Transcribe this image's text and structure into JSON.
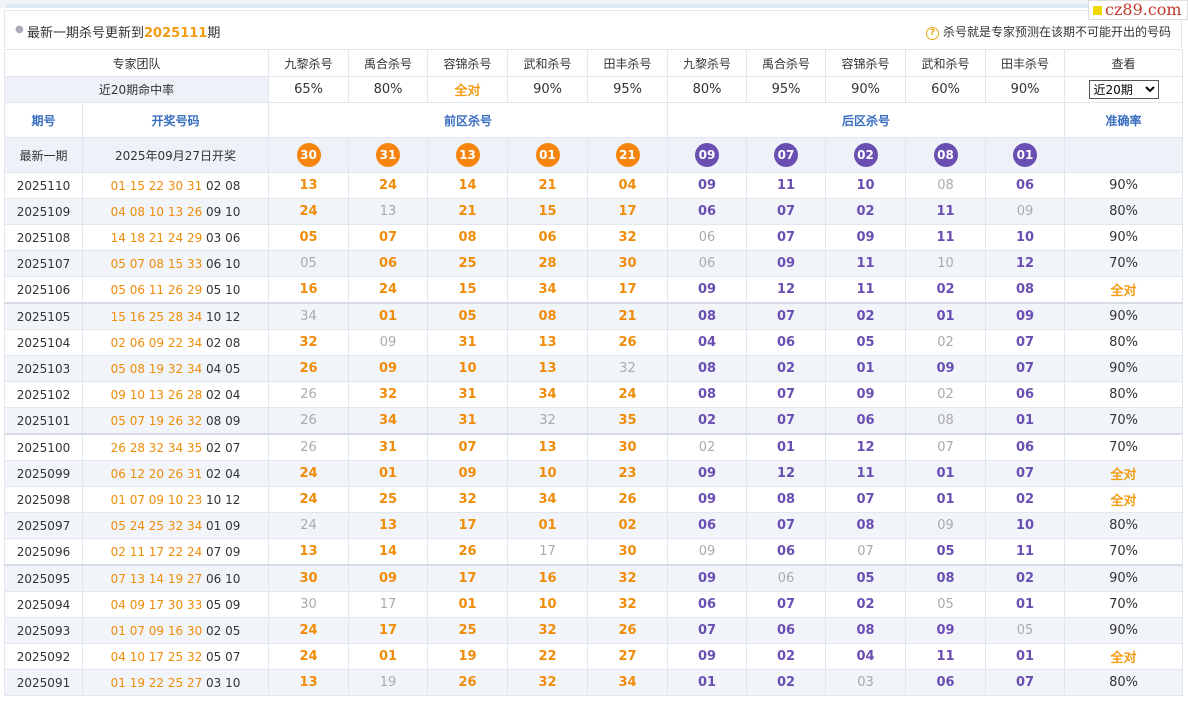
{
  "watermark": "cz89.com",
  "info": {
    "prefix": "最新一期杀号更新到",
    "issue": "2025111",
    "suffix": "期",
    "note": "杀号就是专家预测在该期不可能开出的号码"
  },
  "header": {
    "team_label": "专家团队",
    "experts": [
      "九黎杀号",
      "禹合杀号",
      "容锦杀号",
      "武和杀号",
      "田丰杀号",
      "九黎杀号",
      "禹合杀号",
      "容锦杀号",
      "武和杀号",
      "田丰杀号"
    ],
    "view_label": "查看",
    "hit_label": "近20期命中率",
    "hit_rates": [
      "65%",
      "80%",
      "全对",
      "90%",
      "95%",
      "80%",
      "95%",
      "90%",
      "60%",
      "90%"
    ],
    "select_value": "近20期",
    "col_period": "期号",
    "col_draw": "开奖号码",
    "col_front": "前区杀号",
    "col_back": "后区杀号",
    "col_accuracy": "准确率"
  },
  "latest": {
    "label": "最新一期",
    "date": "2025年09月27日开奖",
    "front": [
      "30",
      "31",
      "13",
      "01",
      "21"
    ],
    "back": [
      "09",
      "07",
      "02",
      "08",
      "01"
    ]
  },
  "rows": [
    {
      "period": "2025110",
      "front_draw": "01 15 22 30 31",
      "back_draw": "02 08",
      "kills": [
        "13",
        "24",
        "14",
        "21",
        "04",
        "09",
        "11",
        "10",
        "08",
        "06"
      ],
      "misses": [
        8
      ],
      "accuracy": "90%"
    },
    {
      "period": "2025109",
      "front_draw": "04 08 10 13 26",
      "back_draw": "09 10",
      "kills": [
        "24",
        "13",
        "21",
        "15",
        "17",
        "06",
        "07",
        "02",
        "11",
        "09"
      ],
      "misses": [
        1,
        9
      ],
      "accuracy": "80%"
    },
    {
      "period": "2025108",
      "front_draw": "14 18 21 24 29",
      "back_draw": "03 06",
      "kills": [
        "05",
        "07",
        "08",
        "06",
        "32",
        "06",
        "07",
        "09",
        "11",
        "10"
      ],
      "misses": [
        5
      ],
      "accuracy": "90%"
    },
    {
      "period": "2025107",
      "front_draw": "05 07 08 15 33",
      "back_draw": "06 10",
      "kills": [
        "05",
        "06",
        "25",
        "28",
        "30",
        "06",
        "09",
        "11",
        "10",
        "12"
      ],
      "misses": [
        0,
        5,
        8
      ],
      "accuracy": "70%"
    },
    {
      "period": "2025106",
      "front_draw": "05 06 11 26 29",
      "back_draw": "05 10",
      "kills": [
        "16",
        "24",
        "15",
        "34",
        "17",
        "09",
        "12",
        "11",
        "02",
        "08"
      ],
      "misses": [],
      "accuracy": "全对"
    },
    {
      "period": "2025105",
      "front_draw": "15 16 25 28 34",
      "back_draw": "10 12",
      "kills": [
        "34",
        "01",
        "05",
        "08",
        "21",
        "08",
        "07",
        "02",
        "01",
        "09"
      ],
      "misses": [
        0
      ],
      "accuracy": "90%"
    },
    {
      "period": "2025104",
      "front_draw": "02 06 09 22 34",
      "back_draw": "02 08",
      "kills": [
        "32",
        "09",
        "31",
        "13",
        "26",
        "04",
        "06",
        "05",
        "02",
        "07"
      ],
      "misses": [
        1,
        8
      ],
      "accuracy": "80%"
    },
    {
      "period": "2025103",
      "front_draw": "05 08 19 32 34",
      "back_draw": "04 05",
      "kills": [
        "26",
        "09",
        "10",
        "13",
        "32",
        "08",
        "02",
        "01",
        "09",
        "07"
      ],
      "misses": [
        4
      ],
      "accuracy": "90%"
    },
    {
      "period": "2025102",
      "front_draw": "09 10 13 26 28",
      "back_draw": "02 04",
      "kills": [
        "26",
        "32",
        "31",
        "34",
        "24",
        "08",
        "07",
        "09",
        "02",
        "06"
      ],
      "misses": [
        0,
        8
      ],
      "accuracy": "80%"
    },
    {
      "period": "2025101",
      "front_draw": "05 07 19 26 32",
      "back_draw": "08 09",
      "kills": [
        "26",
        "34",
        "31",
        "32",
        "35",
        "02",
        "07",
        "06",
        "08",
        "01"
      ],
      "misses": [
        0,
        3,
        8
      ],
      "accuracy": "70%"
    },
    {
      "period": "2025100",
      "front_draw": "26 28 32 34 35",
      "back_draw": "02 07",
      "kills": [
        "26",
        "31",
        "07",
        "13",
        "30",
        "02",
        "01",
        "12",
        "07",
        "06"
      ],
      "misses": [
        0,
        5,
        8
      ],
      "accuracy": "70%"
    },
    {
      "period": "2025099",
      "front_draw": "06 12 20 26 31",
      "back_draw": "02 04",
      "kills": [
        "24",
        "01",
        "09",
        "10",
        "23",
        "09",
        "12",
        "11",
        "01",
        "07"
      ],
      "misses": [],
      "accuracy": "全对"
    },
    {
      "period": "2025098",
      "front_draw": "01 07 09 10 23",
      "back_draw": "10 12",
      "kills": [
        "24",
        "25",
        "32",
        "34",
        "26",
        "09",
        "08",
        "07",
        "01",
        "02"
      ],
      "misses": [],
      "accuracy": "全对"
    },
    {
      "period": "2025097",
      "front_draw": "05 24 25 32 34",
      "back_draw": "01 09",
      "kills": [
        "24",
        "13",
        "17",
        "01",
        "02",
        "06",
        "07",
        "08",
        "09",
        "10"
      ],
      "misses": [
        0,
        8
      ],
      "accuracy": "80%"
    },
    {
      "period": "2025096",
      "front_draw": "02 11 17 22 24",
      "back_draw": "07 09",
      "kills": [
        "13",
        "14",
        "26",
        "17",
        "30",
        "09",
        "06",
        "07",
        "05",
        "11"
      ],
      "misses": [
        3,
        5,
        7
      ],
      "accuracy": "70%"
    },
    {
      "period": "2025095",
      "front_draw": "07 13 14 19 27",
      "back_draw": "06 10",
      "kills": [
        "30",
        "09",
        "17",
        "16",
        "32",
        "09",
        "06",
        "05",
        "08",
        "02"
      ],
      "misses": [
        6
      ],
      "accuracy": "90%"
    },
    {
      "period": "2025094",
      "front_draw": "04 09 17 30 33",
      "back_draw": "05 09",
      "kills": [
        "30",
        "17",
        "01",
        "10",
        "32",
        "06",
        "07",
        "02",
        "05",
        "01"
      ],
      "misses": [
        0,
        1,
        8
      ],
      "accuracy": "70%"
    },
    {
      "period": "2025093",
      "front_draw": "01 07 09 16 30",
      "back_draw": "02 05",
      "kills": [
        "24",
        "17",
        "25",
        "32",
        "26",
        "07",
        "06",
        "08",
        "09",
        "05"
      ],
      "misses": [
        9
      ],
      "accuracy": "90%"
    },
    {
      "period": "2025092",
      "front_draw": "04 10 17 25 32",
      "back_draw": "05 07",
      "kills": [
        "24",
        "01",
        "19",
        "22",
        "27",
        "09",
        "02",
        "04",
        "11",
        "01"
      ],
      "misses": [],
      "accuracy": "全对"
    },
    {
      "period": "2025091",
      "front_draw": "01 19 22 25 27",
      "back_draw": "03 10",
      "kills": [
        "13",
        "19",
        "26",
        "32",
        "34",
        "01",
        "02",
        "03",
        "06",
        "07"
      ],
      "misses": [
        1,
        7
      ],
      "accuracy": "80%"
    }
  ]
}
